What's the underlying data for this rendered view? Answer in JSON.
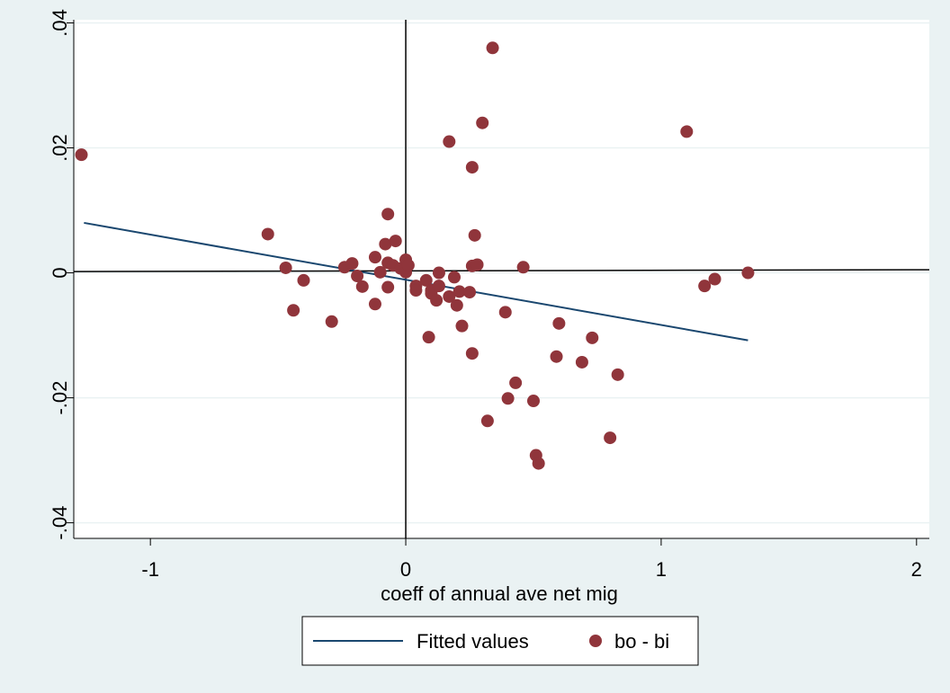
{
  "chart_data": {
    "type": "scatter",
    "title": "",
    "xlabel": "coeff of annual ave net mig",
    "ylabel": "",
    "xlim": [
      -1.3,
      2.05
    ],
    "ylim": [
      -0.0425,
      0.0405
    ],
    "x_ticks": [
      -1,
      0,
      1,
      2
    ],
    "x_tick_labels": [
      "-1",
      "0",
      "1",
      "2"
    ],
    "y_ticks": [
      -0.04,
      -0.02,
      0,
      0.02,
      0.04
    ],
    "y_tick_labels": [
      "-.04",
      "-.02",
      "0",
      ".02",
      ".04"
    ],
    "grid": true,
    "legend_position": "bottom",
    "reference_lines": {
      "vertical": {
        "x": 0
      },
      "horizontal": {
        "x": [
          -1.3,
          2.05
        ],
        "y": [
          0.0002,
          0.0005
        ]
      }
    },
    "series": [
      {
        "name": "Fitted values",
        "kind": "line",
        "color": "#1a476f",
        "x": [
          -1.26,
          1.34
        ],
        "y": [
          0.008,
          -0.0108
        ]
      },
      {
        "name": "bo - bi",
        "kind": "scatter",
        "color": "#90353b",
        "points": [
          [
            -1.27,
            0.0189
          ],
          [
            -0.54,
            0.0062
          ],
          [
            -0.47,
            0.0008
          ],
          [
            -0.44,
            -0.006
          ],
          [
            -0.4,
            -0.0012
          ],
          [
            -0.29,
            -0.0078
          ],
          [
            -0.24,
            0.0009
          ],
          [
            -0.21,
            0.0015
          ],
          [
            -0.19,
            -0.0005
          ],
          [
            -0.17,
            -0.0022
          ],
          [
            -0.12,
            0.0025
          ],
          [
            -0.12,
            -0.005
          ],
          [
            -0.1,
            0.0001
          ],
          [
            -0.08,
            0.0046
          ],
          [
            -0.07,
            0.0094
          ],
          [
            -0.07,
            0.0016
          ],
          [
            -0.07,
            -0.0023
          ],
          [
            -0.05,
            0.0012
          ],
          [
            -0.04,
            0.0051
          ],
          [
            -0.02,
            0.0007
          ],
          [
            0.0,
            0.0021
          ],
          [
            0.0,
            0.0001
          ],
          [
            0.01,
            0.0012
          ],
          [
            0.04,
            -0.0021
          ],
          [
            0.04,
            -0.0028
          ],
          [
            0.08,
            -0.0012
          ],
          [
            0.09,
            -0.0103
          ],
          [
            0.1,
            -0.0028
          ],
          [
            0.1,
            -0.0033
          ],
          [
            0.12,
            -0.0044
          ],
          [
            0.13,
            0.0
          ],
          [
            0.13,
            -0.0021
          ],
          [
            0.17,
            -0.0038
          ],
          [
            0.17,
            0.021
          ],
          [
            0.19,
            -0.0007
          ],
          [
            0.2,
            -0.0052
          ],
          [
            0.21,
            -0.003
          ],
          [
            0.22,
            -0.0085
          ],
          [
            0.25,
            -0.0031
          ],
          [
            0.26,
            0.0011
          ],
          [
            0.26,
            0.0169
          ],
          [
            0.26,
            -0.0129
          ],
          [
            0.27,
            0.006
          ],
          [
            0.28,
            0.0013
          ],
          [
            0.3,
            0.024
          ],
          [
            0.32,
            -0.0237
          ],
          [
            0.34,
            0.036
          ],
          [
            0.39,
            -0.0063
          ],
          [
            0.4,
            -0.0201
          ],
          [
            0.43,
            -0.0176
          ],
          [
            0.46,
            0.0009
          ],
          [
            0.5,
            -0.0205
          ],
          [
            0.51,
            -0.0292
          ],
          [
            0.52,
            -0.0305
          ],
          [
            0.59,
            -0.0134
          ],
          [
            0.6,
            -0.0081
          ],
          [
            0.69,
            -0.0143
          ],
          [
            0.73,
            -0.0104
          ],
          [
            0.8,
            -0.0264
          ],
          [
            0.83,
            -0.0163
          ],
          [
            1.1,
            0.0226
          ],
          [
            1.17,
            -0.0021
          ],
          [
            1.21,
            -0.001
          ],
          [
            1.34,
            0.0
          ]
        ]
      }
    ]
  }
}
